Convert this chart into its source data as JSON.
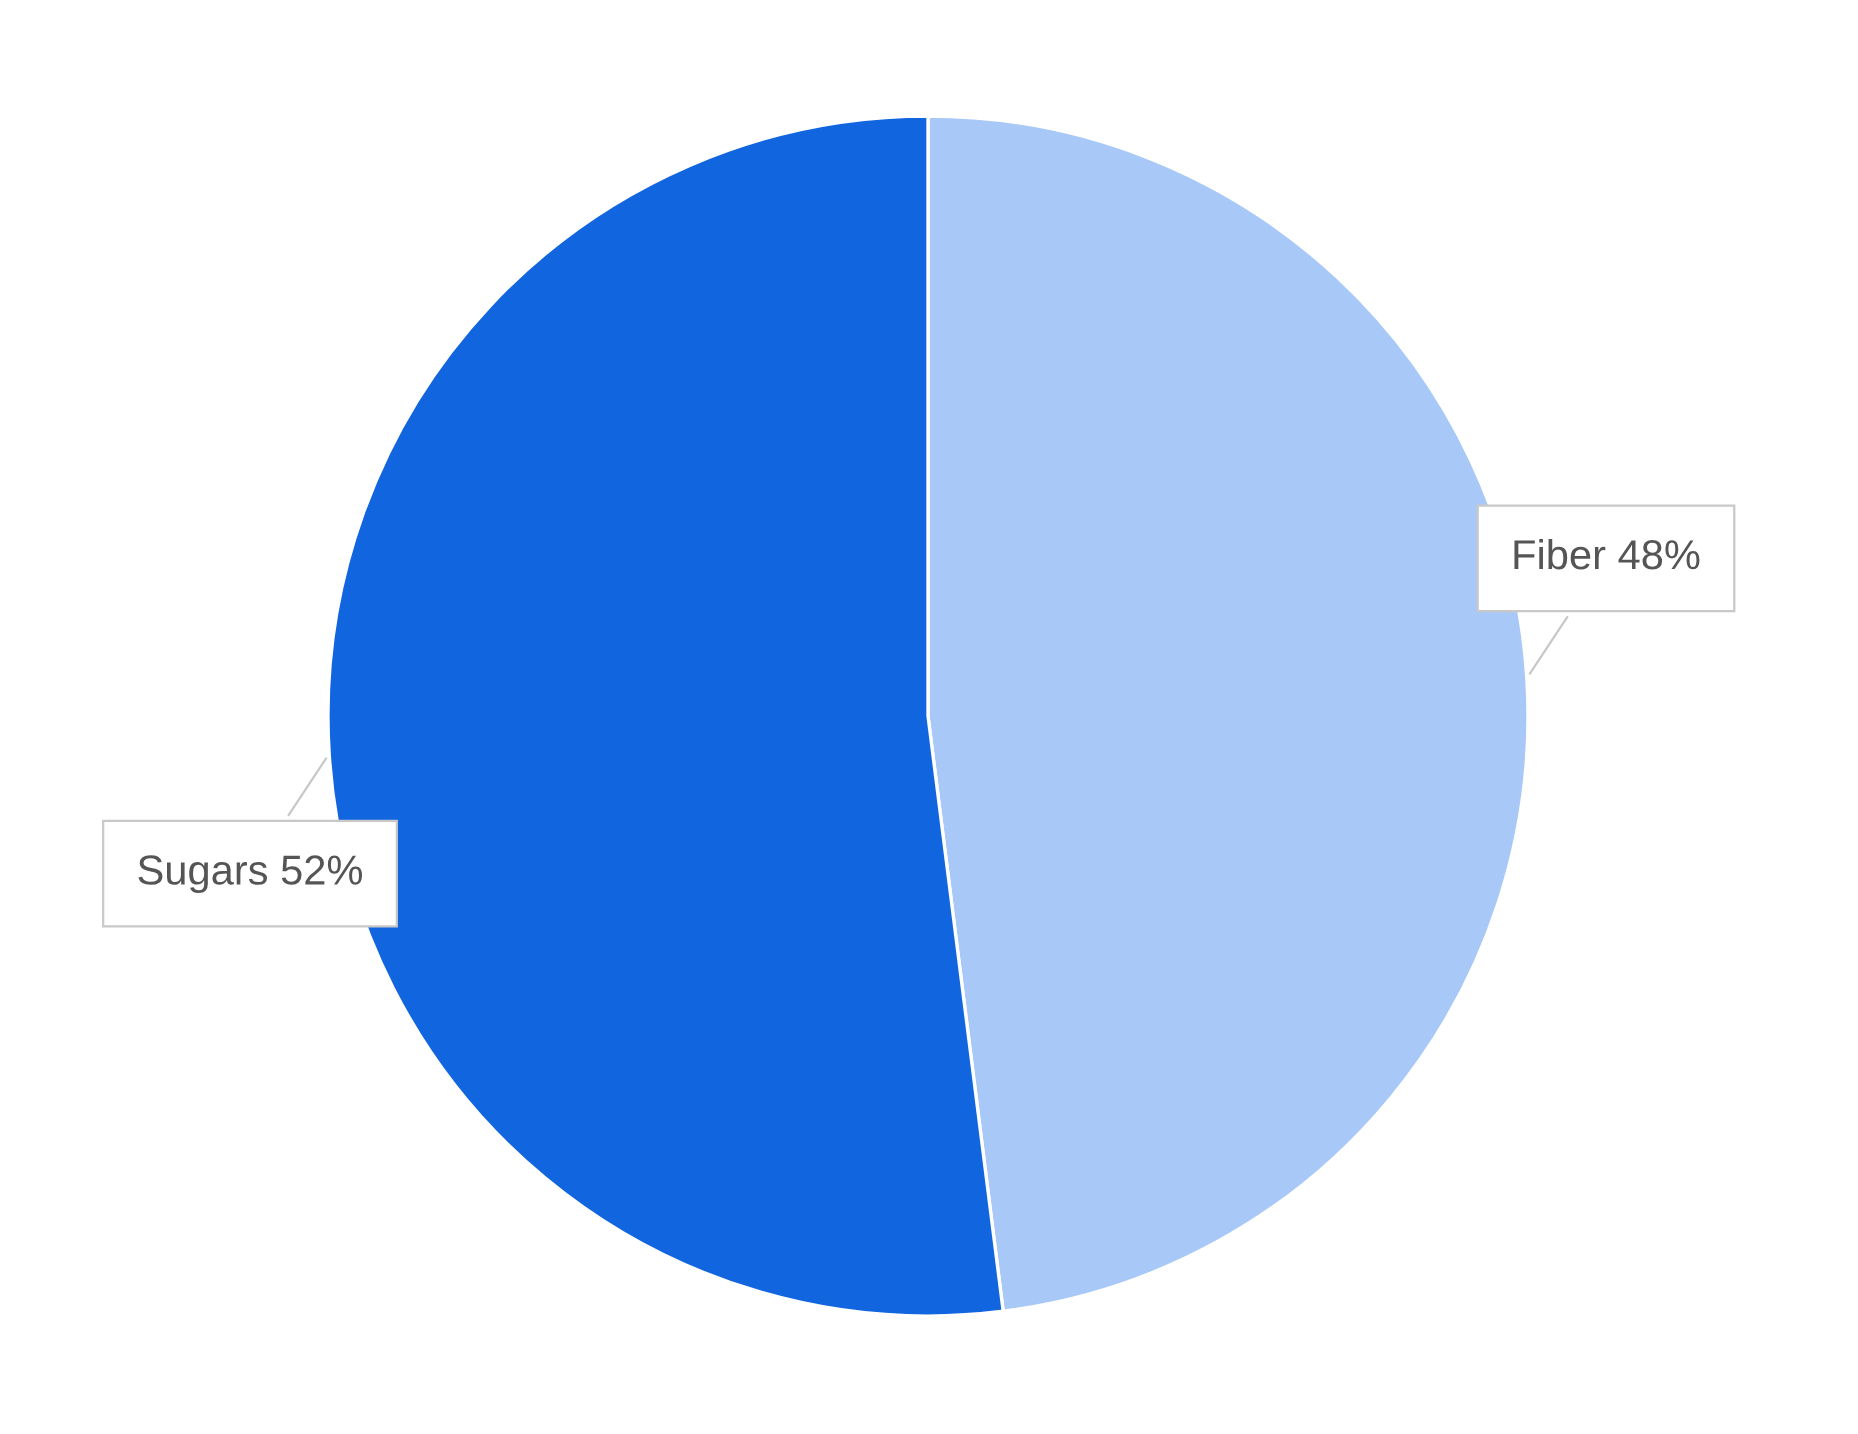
{
  "chart_data": {
    "type": "pie",
    "categories": [
      "Fiber",
      "Sugars"
    ],
    "values": [
      48,
      52
    ],
    "value_labels": [
      "48%",
      "52%"
    ],
    "colors": [
      "#a8c8f8",
      "#1166e0"
    ]
  }
}
